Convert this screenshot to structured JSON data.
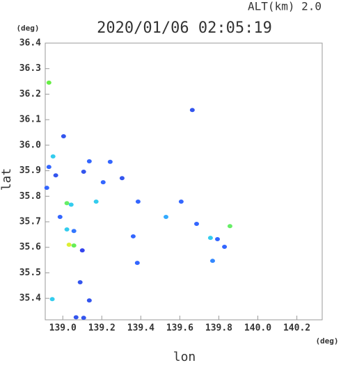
{
  "chart_data": {
    "type": "scatter",
    "title": "2020/01/06 02:05:19",
    "subtitle": "ALT(km) 2.0",
    "x_label": "lon",
    "y_label": "lat",
    "x_unit": "(deg)",
    "y_unit": "(deg)",
    "xlim": [
      138.91,
      140.33
    ],
    "ylim": [
      35.316,
      36.4
    ],
    "xticks": [
      {
        "value": 139.0,
        "label": "139.0"
      },
      139.2,
      139.4,
      139.6,
      139.8,
      {
        "value": 140.0,
        "label": "140.0"
      },
      140.2
    ],
    "yticks": [
      35.4,
      35.5,
      35.6,
      35.7,
      35.8,
      35.9,
      {
        "value": 36.0,
        "label": "36.0"
      },
      36.1,
      36.2,
      36.3,
      36.4
    ],
    "x": [
      138.929,
      138.95,
      138.929,
      138.964,
      138.918,
      139.004,
      139.021,
      139.043,
      138.986,
      139.021,
      139.057,
      139.032,
      139.057,
      139.1,
      139.089,
      139.136,
      138.946,
      139.068,
      139.107,
      139.136,
      139.107,
      139.207,
      139.171,
      139.243,
      139.304,
      139.386,
      139.382,
      139.664,
      139.607,
      139.757,
      139.793,
      139.768,
      139.829,
      139.857,
      139.686,
      139.529,
      139.361
    ],
    "y": [
      36.245,
      35.956,
      35.915,
      35.882,
      35.833,
      36.035,
      35.773,
      35.767,
      35.719,
      35.67,
      35.664,
      35.61,
      35.607,
      35.588,
      35.463,
      35.392,
      35.397,
      35.326,
      35.324,
      35.937,
      35.896,
      35.855,
      35.779,
      35.935,
      35.871,
      35.779,
      35.539,
      36.138,
      35.779,
      35.637,
      35.632,
      35.547,
      35.602,
      35.683,
      35.692,
      35.719,
      35.643
    ],
    "colors": [
      "#66ee44",
      "#33ccee",
      "#3366ff",
      "#3355ee",
      "#3366ff",
      "#3355ee",
      "#66ee66",
      "#33ccee",
      "#3366ff",
      "#33ccee",
      "#3377ff",
      "#ddee33",
      "#66ee55",
      "#3344ee",
      "#3355ee",
      "#3355ee",
      "#33ccee",
      "#3355ee",
      "#3355ee",
      "#3366ff",
      "#3355ee",
      "#3366ff",
      "#33ccee",
      "#3366ff",
      "#3355ee",
      "#3366ff",
      "#3366ff",
      "#3355ee",
      "#3366ff",
      "#33ccee",
      "#3366ff",
      "#3388ff",
      "#3366ff",
      "#66ee66",
      "#3366ff",
      "#33aaff",
      "#3366ff"
    ],
    "grid": false
  }
}
